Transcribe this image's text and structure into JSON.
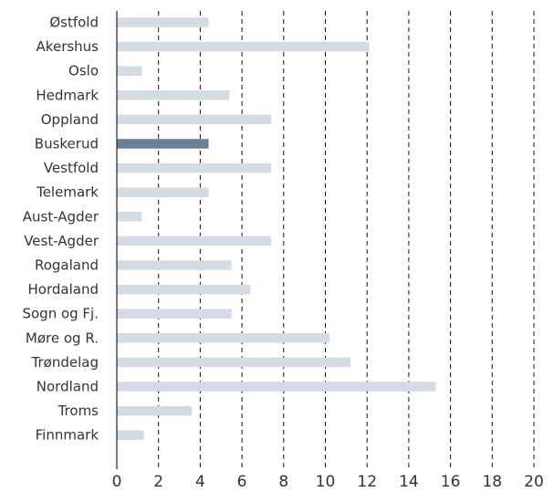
{
  "chart_data": {
    "type": "bar",
    "orientation": "horizontal",
    "categories": [
      "Østfold",
      "Akershus",
      "Oslo",
      "Hedmark",
      "Oppland",
      "Buskerud",
      "Vestfold",
      "Telemark",
      "Aust-Agder",
      "Vest-Agder",
      "Rogaland",
      "Hordaland",
      "Sogn og Fj.",
      "Møre og R.",
      "Trøndelag",
      "Nordland",
      "Troms",
      "Finnmark"
    ],
    "values": [
      4.4,
      12.1,
      1.2,
      5.4,
      7.4,
      4.4,
      7.4,
      4.4,
      1.2,
      7.4,
      5.5,
      6.4,
      5.5,
      10.2,
      11.2,
      15.3,
      3.6,
      1.3
    ],
    "highlight": "Buskerud",
    "xlim": [
      0,
      20
    ],
    "xticks": [
      "0",
      "2",
      "4",
      "6",
      "8",
      "10",
      "12",
      "14",
      "16",
      "18",
      "20"
    ],
    "grid": "vertical dashed",
    "colors": {
      "bar": "#d3dbe5",
      "highlight": "#6a7f94",
      "grid": "#111111",
      "axis": "#222222"
    }
  }
}
